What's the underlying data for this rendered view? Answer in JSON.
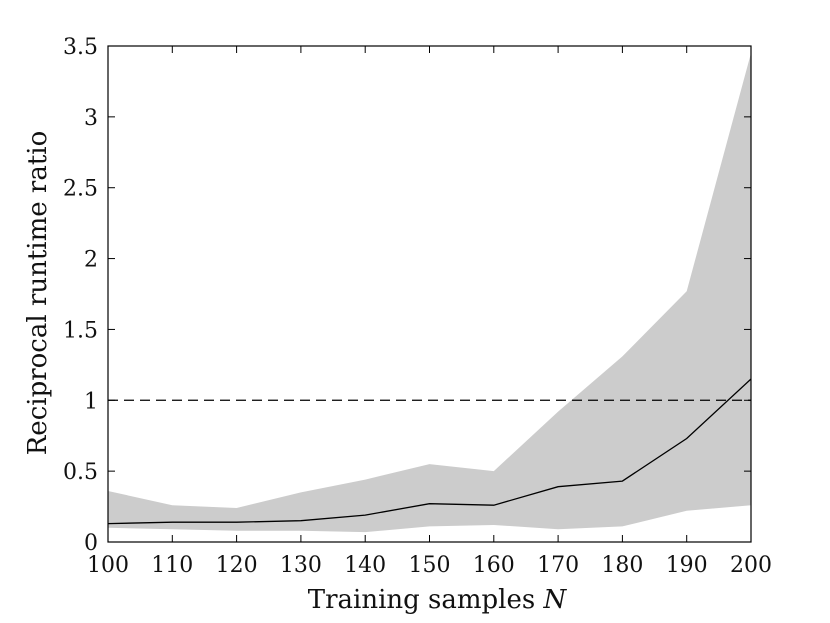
{
  "chart_data": {
    "type": "line",
    "xlabel": "Training samples",
    "xlabel_var": "N",
    "ylabel": "Reciprocal runtime ratio",
    "xlim": [
      100,
      200
    ],
    "ylim": [
      0,
      3.5
    ],
    "xticks": [
      "100",
      "110",
      "120",
      "130",
      "140",
      "150",
      "160",
      "170",
      "180",
      "190",
      "200"
    ],
    "yticks": [
      "0",
      "0.5",
      "1",
      "1.5",
      "2",
      "2.5",
      "3",
      "3.5"
    ],
    "x": [
      100,
      110,
      120,
      130,
      140,
      150,
      160,
      170,
      180,
      190,
      200
    ],
    "series": [
      {
        "values": [
          0.13,
          0.14,
          0.14,
          0.15,
          0.19,
          0.27,
          0.26,
          0.39,
          0.43,
          0.73,
          1.15
        ]
      }
    ],
    "band": {
      "lower": [
        0.1,
        0.09,
        0.08,
        0.08,
        0.07,
        0.11,
        0.12,
        0.09,
        0.11,
        0.22,
        0.26
      ],
      "upper": [
        0.36,
        0.26,
        0.24,
        0.35,
        0.44,
        0.55,
        0.5,
        0.92,
        1.31,
        1.77,
        3.45
      ]
    },
    "reference_line": {
      "y": 1,
      "style": "dashed"
    },
    "grid": false,
    "colors": {
      "line": "#000000",
      "band": "#cccccc",
      "axes": "#000000"
    }
  }
}
